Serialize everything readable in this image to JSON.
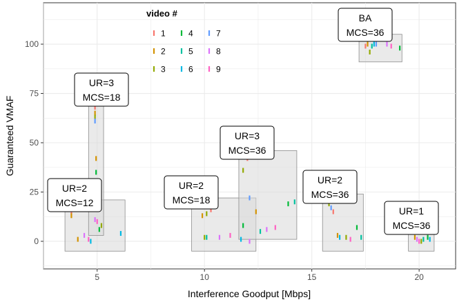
{
  "chart_data": {
    "type": "scatter",
    "xlabel": "Interference Goodput [Mbps]",
    "ylabel": "Guaranteed VMAF",
    "xlim": [
      2.5,
      21.7
    ],
    "ylim": [
      -14,
      121
    ],
    "xticks": [
      5,
      10,
      15,
      20
    ],
    "yticks": [
      0,
      25,
      50,
      75,
      100
    ],
    "grid": true,
    "legend": {
      "title": "video #",
      "placement": "top-left inside",
      "entries": [
        {
          "label": "1",
          "color": "#F8766D"
        },
        {
          "label": "2",
          "color": "#D39200"
        },
        {
          "label": "3",
          "color": "#93AA00"
        },
        {
          "label": "4",
          "color": "#00BA38"
        },
        {
          "label": "5",
          "color": "#00C19F"
        },
        {
          "label": "6",
          "color": "#00B9E3"
        },
        {
          "label": "7",
          "color": "#619CFF"
        },
        {
          "label": "8",
          "color": "#DB72FB"
        },
        {
          "label": "9",
          "color": "#FF61C3"
        }
      ]
    },
    "groups": [
      {
        "label_lines": [
          "UR=2",
          "MCS=12"
        ],
        "box": {
          "x0": 3.5,
          "x1": 6.3,
          "y0": -5,
          "y1": 21
        },
        "points": [
          {
            "video": "1",
            "x": 3.8,
            "y": 15
          },
          {
            "video": "2",
            "x": 3.8,
            "y": 13
          },
          {
            "video": "7",
            "x": 3.8,
            "y": 17
          },
          {
            "video": "2",
            "x": 4.1,
            "y": 1
          },
          {
            "video": "8",
            "x": 4.4,
            "y": 3
          },
          {
            "video": "9",
            "x": 4.6,
            "y": 1
          },
          {
            "video": "6",
            "x": 4.7,
            "y": 0
          },
          {
            "video": "8",
            "x": 4.9,
            "y": 11
          },
          {
            "video": "9",
            "x": 5.0,
            "y": 10
          },
          {
            "video": "4",
            "x": 5.1,
            "y": 6
          },
          {
            "video": "3",
            "x": 5.2,
            "y": 8
          },
          {
            "video": "6",
            "x": 6.1,
            "y": 4
          }
        ]
      },
      {
        "label_lines": [
          "UR=3",
          "MCS=18"
        ],
        "box": {
          "x0": 4.6,
          "x1": 5.3,
          "y0": 3,
          "y1": 71
        },
        "points": [
          {
            "video": "1",
            "x": 4.9,
            "y": 68
          },
          {
            "video": "2",
            "x": 4.9,
            "y": 65
          },
          {
            "video": "3",
            "x": 4.9,
            "y": 63
          },
          {
            "video": "7",
            "x": 4.9,
            "y": 61
          },
          {
            "video": "2",
            "x": 4.95,
            "y": 42
          },
          {
            "video": "4",
            "x": 4.95,
            "y": 35
          },
          {
            "video": "1",
            "x": 5.0,
            "y": 30
          }
        ]
      },
      {
        "label_lines": [
          "UR=2",
          "MCS=18"
        ],
        "box": {
          "x0": 9.4,
          "x1": 12.4,
          "y0": -5,
          "y1": 22
        },
        "points": [
          {
            "video": "2",
            "x": 9.9,
            "y": 13
          },
          {
            "video": "3",
            "x": 10.1,
            "y": 14
          },
          {
            "video": "1",
            "x": 10.3,
            "y": 16
          },
          {
            "video": "7",
            "x": 10.5,
            "y": 18
          },
          {
            "video": "3",
            "x": 10.0,
            "y": 2
          },
          {
            "video": "5",
            "x": 10.1,
            "y": 2
          },
          {
            "video": "8",
            "x": 10.7,
            "y": 2
          },
          {
            "video": "9",
            "x": 11.2,
            "y": 3
          },
          {
            "video": "6",
            "x": 11.7,
            "y": 1
          },
          {
            "video": "8",
            "x": 12.1,
            "y": 0
          }
        ]
      },
      {
        "label_lines": [
          "UR=3",
          "MCS=36"
        ],
        "box": {
          "x0": 11.6,
          "x1": 14.3,
          "y0": 1,
          "y1": 46
        },
        "points": [
          {
            "video": "1",
            "x": 12.0,
            "y": 42
          },
          {
            "video": "3",
            "x": 11.8,
            "y": 36
          },
          {
            "video": "4",
            "x": 11.8,
            "y": 8
          },
          {
            "video": "2",
            "x": 12.4,
            "y": 15
          },
          {
            "video": "7",
            "x": 12.1,
            "y": 22
          },
          {
            "video": "5",
            "x": 12.6,
            "y": 5
          },
          {
            "video": "8",
            "x": 12.9,
            "y": 6
          },
          {
            "video": "9",
            "x": 13.3,
            "y": 7
          },
          {
            "video": "4",
            "x": 13.9,
            "y": 19
          },
          {
            "video": "5",
            "x": 14.2,
            "y": 20
          }
        ]
      },
      {
        "label_lines": [
          "UR=2",
          "MCS=36"
        ],
        "box": {
          "x0": 15.5,
          "x1": 17.4,
          "y0": -5,
          "y1": 24
        },
        "points": [
          {
            "video": "3",
            "x": 15.8,
            "y": 19
          },
          {
            "video": "7",
            "x": 15.9,
            "y": 17
          },
          {
            "video": "1",
            "x": 16.0,
            "y": 15
          },
          {
            "video": "2",
            "x": 16.2,
            "y": 3
          },
          {
            "video": "6",
            "x": 16.3,
            "y": 2
          },
          {
            "video": "3",
            "x": 16.6,
            "y": 2
          },
          {
            "video": "9",
            "x": 16.8,
            "y": 1
          },
          {
            "video": "4",
            "x": 17.1,
            "y": 7
          },
          {
            "video": "5",
            "x": 17.3,
            "y": 2
          }
        ]
      },
      {
        "label_lines": [
          "UR=1",
          "MCS=36"
        ],
        "box": {
          "x0": 19.5,
          "x1": 20.7,
          "y0": -5,
          "y1": 8
        },
        "points": [
          {
            "video": "7",
            "x": 19.8,
            "y": 6
          },
          {
            "video": "2",
            "x": 19.8,
            "y": 2
          },
          {
            "video": "8",
            "x": 19.9,
            "y": 1
          },
          {
            "video": "3",
            "x": 20.1,
            "y": 0
          },
          {
            "video": "5",
            "x": 20.2,
            "y": 1
          },
          {
            "video": "9",
            "x": 20.0,
            "y": 0
          },
          {
            "video": "4",
            "x": 20.4,
            "y": 2
          },
          {
            "video": "6",
            "x": 20.5,
            "y": 1
          }
        ]
      },
      {
        "label_lines": [
          "BA",
          "MCS=36"
        ],
        "box": {
          "x0": 17.2,
          "x1": 19.2,
          "y0": 91,
          "y1": 105
        },
        "points": [
          {
            "video": "1",
            "x": 17.5,
            "y": 99
          },
          {
            "video": "2",
            "x": 17.6,
            "y": 100
          },
          {
            "video": "3",
            "x": 17.7,
            "y": 96
          },
          {
            "video": "5",
            "x": 17.8,
            "y": 99
          },
          {
            "video": "6",
            "x": 17.9,
            "y": 100
          },
          {
            "video": "7",
            "x": 18.0,
            "y": 100
          },
          {
            "video": "8",
            "x": 18.5,
            "y": 100
          },
          {
            "video": "9",
            "x": 18.7,
            "y": 99
          },
          {
            "video": "4",
            "x": 19.1,
            "y": 98
          }
        ]
      }
    ]
  }
}
